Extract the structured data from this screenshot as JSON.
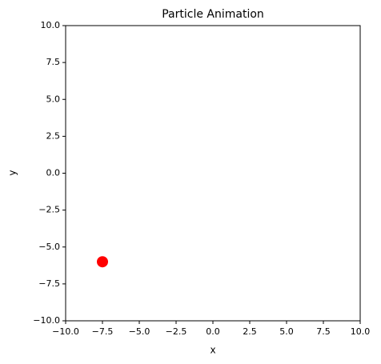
{
  "chart_data": {
    "type": "scatter",
    "title": "Particle Animation",
    "x_label": "x",
    "y_label": "y",
    "series": [
      {
        "color": "#ff0000",
        "x": [
          -7.5
        ],
        "values": [
          -6
        ]
      }
    ],
    "xlim": [
      -10,
      10
    ],
    "ylim": [
      -10,
      10
    ],
    "xticks": [
      {
        "value": -10,
        "label": "−10.0"
      },
      {
        "value": -7.5,
        "label": "−7.5"
      },
      {
        "value": -5,
        "label": "−5.0"
      },
      {
        "value": -2.5,
        "label": "−2.5"
      },
      {
        "value": 0,
        "label": "0.0"
      },
      2.5,
      {
        "value": 5,
        "label": "5.0"
      },
      7.5,
      {
        "value": 10,
        "label": "10.0"
      }
    ],
    "yticks": [
      {
        "value": -10,
        "label": "−10.0"
      },
      {
        "value": -7.5,
        "label": "−7.5"
      },
      {
        "value": -5,
        "label": "−5.0"
      },
      {
        "value": -2.5,
        "label": "−2.5"
      },
      {
        "value": 0,
        "label": "0.0"
      },
      2.5,
      {
        "value": 5,
        "label": "5.0"
      },
      7.5,
      {
        "value": 10,
        "label": "10.0"
      }
    ],
    "grid": false
  }
}
